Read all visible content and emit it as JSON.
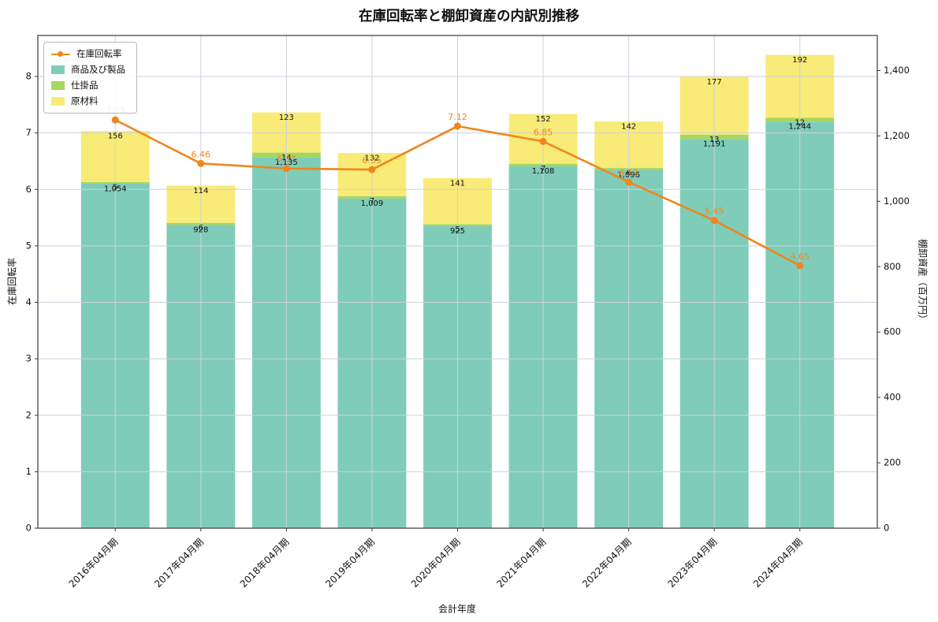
{
  "title": "在庫回転率と棚卸資産の内訳別推移",
  "axes": {
    "x_label": "会計年度",
    "left_label": "在庫回転率",
    "right_label": "棚卸資産（百万円）",
    "left_ticks": [
      "0",
      "1",
      "2",
      "3",
      "4",
      "5",
      "6",
      "7",
      "8"
    ],
    "right_ticks": [
      "0",
      "200",
      "400",
      "600",
      "800",
      "1,000",
      "1,200",
      "1,400"
    ]
  },
  "legend": {
    "items": [
      "在庫回転率",
      "商品及び製品",
      "仕掛品",
      "原材料"
    ]
  },
  "colors": {
    "line": "#f0861c",
    "series": [
      "#7fccb9",
      "#a6d75f",
      "#f8eb77"
    ],
    "grid": "#ccd2dd",
    "spine": "#3a3a3a",
    "text": "#111111"
  },
  "chart_data": {
    "type": "bar",
    "stacked": true,
    "title": "在庫回転率と棚卸資産の内訳別推移",
    "xlabel": "会計年度",
    "ylabel_left": "在庫回転率",
    "ylabel_right": "棚卸資産（百万円）",
    "ylim_left": [
      0,
      8.73
    ],
    "ylim_right": [
      0,
      1507
    ],
    "grid": true,
    "legend_position": "upper left",
    "categories": [
      "2016年04月期",
      "2017年04月期",
      "2018年04月期",
      "2019年04月期",
      "2020年04月期",
      "2021年04月期",
      "2022年04月期",
      "2023年04月期",
      "2024年04月期"
    ],
    "series": [
      {
        "name": "商品及び製品",
        "axis": "right",
        "values": [
          1054,
          928,
          1135,
          1009,
          925,
          1108,
          1096,
          1191,
          1244
        ]
      },
      {
        "name": "仕掛品",
        "axis": "right",
        "values": [
          5,
          6,
          14,
          7,
          5,
          7,
          6,
          13,
          12
        ]
      },
      {
        "name": "原材料",
        "axis": "right",
        "values": [
          156,
          114,
          123,
          132,
          141,
          152,
          142,
          177,
          192
        ]
      }
    ],
    "line_overlay": {
      "type": "line",
      "name": "在庫回転率",
      "axis": "left",
      "values": [
        7.23,
        6.46,
        6.37,
        6.35,
        7.12,
        6.85,
        6.13,
        5.45,
        4.65
      ]
    }
  }
}
